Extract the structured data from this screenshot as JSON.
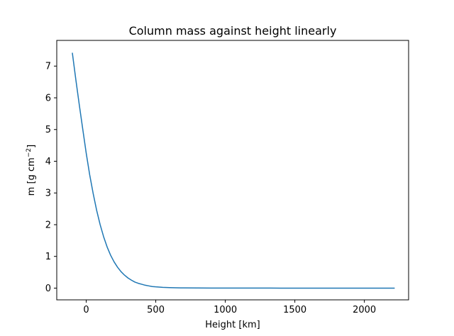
{
  "chart_data": {
    "type": "line",
    "title": "Column mass against height linearly",
    "xlabel": "Height [km]",
    "ylabel_prefix": "m [g cm",
    "ylabel_sup": "−2",
    "ylabel_suffix": "]",
    "xlim": [
      -212,
      2318
    ],
    "ylim": [
      -0.37,
      7.81
    ],
    "xticks": [
      0,
      500,
      1000,
      1500,
      2000
    ],
    "xtick_labels": [
      "0",
      "500",
      "1000",
      "1500",
      "2000"
    ],
    "yticks": [
      0,
      1,
      2,
      3,
      4,
      5,
      6,
      7
    ],
    "ytick_labels": [
      "0",
      "1",
      "2",
      "3",
      "4",
      "5",
      "6",
      "7"
    ],
    "grid": false,
    "series": [
      {
        "color": "#1f77b4",
        "x": [
          -100,
          -75,
          -50,
          -25,
          0,
          25,
          50,
          75,
          100,
          125,
          150,
          175,
          200,
          225,
          250,
          275,
          300,
          325,
          350,
          375,
          400,
          425,
          450,
          475,
          500,
          550,
          600,
          650,
          700,
          800,
          900,
          1000,
          1200,
          1400,
          1600,
          1800,
          2000,
          2218
        ],
        "y": [
          7.42,
          6.58,
          5.78,
          5.01,
          4.25,
          3.57,
          2.98,
          2.45,
          2.0,
          1.62,
          1.3,
          1.04,
          0.83,
          0.66,
          0.52,
          0.41,
          0.32,
          0.25,
          0.19,
          0.15,
          0.12,
          0.09,
          0.07,
          0.05,
          0.04,
          0.025,
          0.015,
          0.009,
          0.006,
          0.003,
          0.0015,
          0.0008,
          0.0003,
          0.0001,
          0.0,
          0.0,
          0.0,
          0.0
        ]
      }
    ]
  }
}
